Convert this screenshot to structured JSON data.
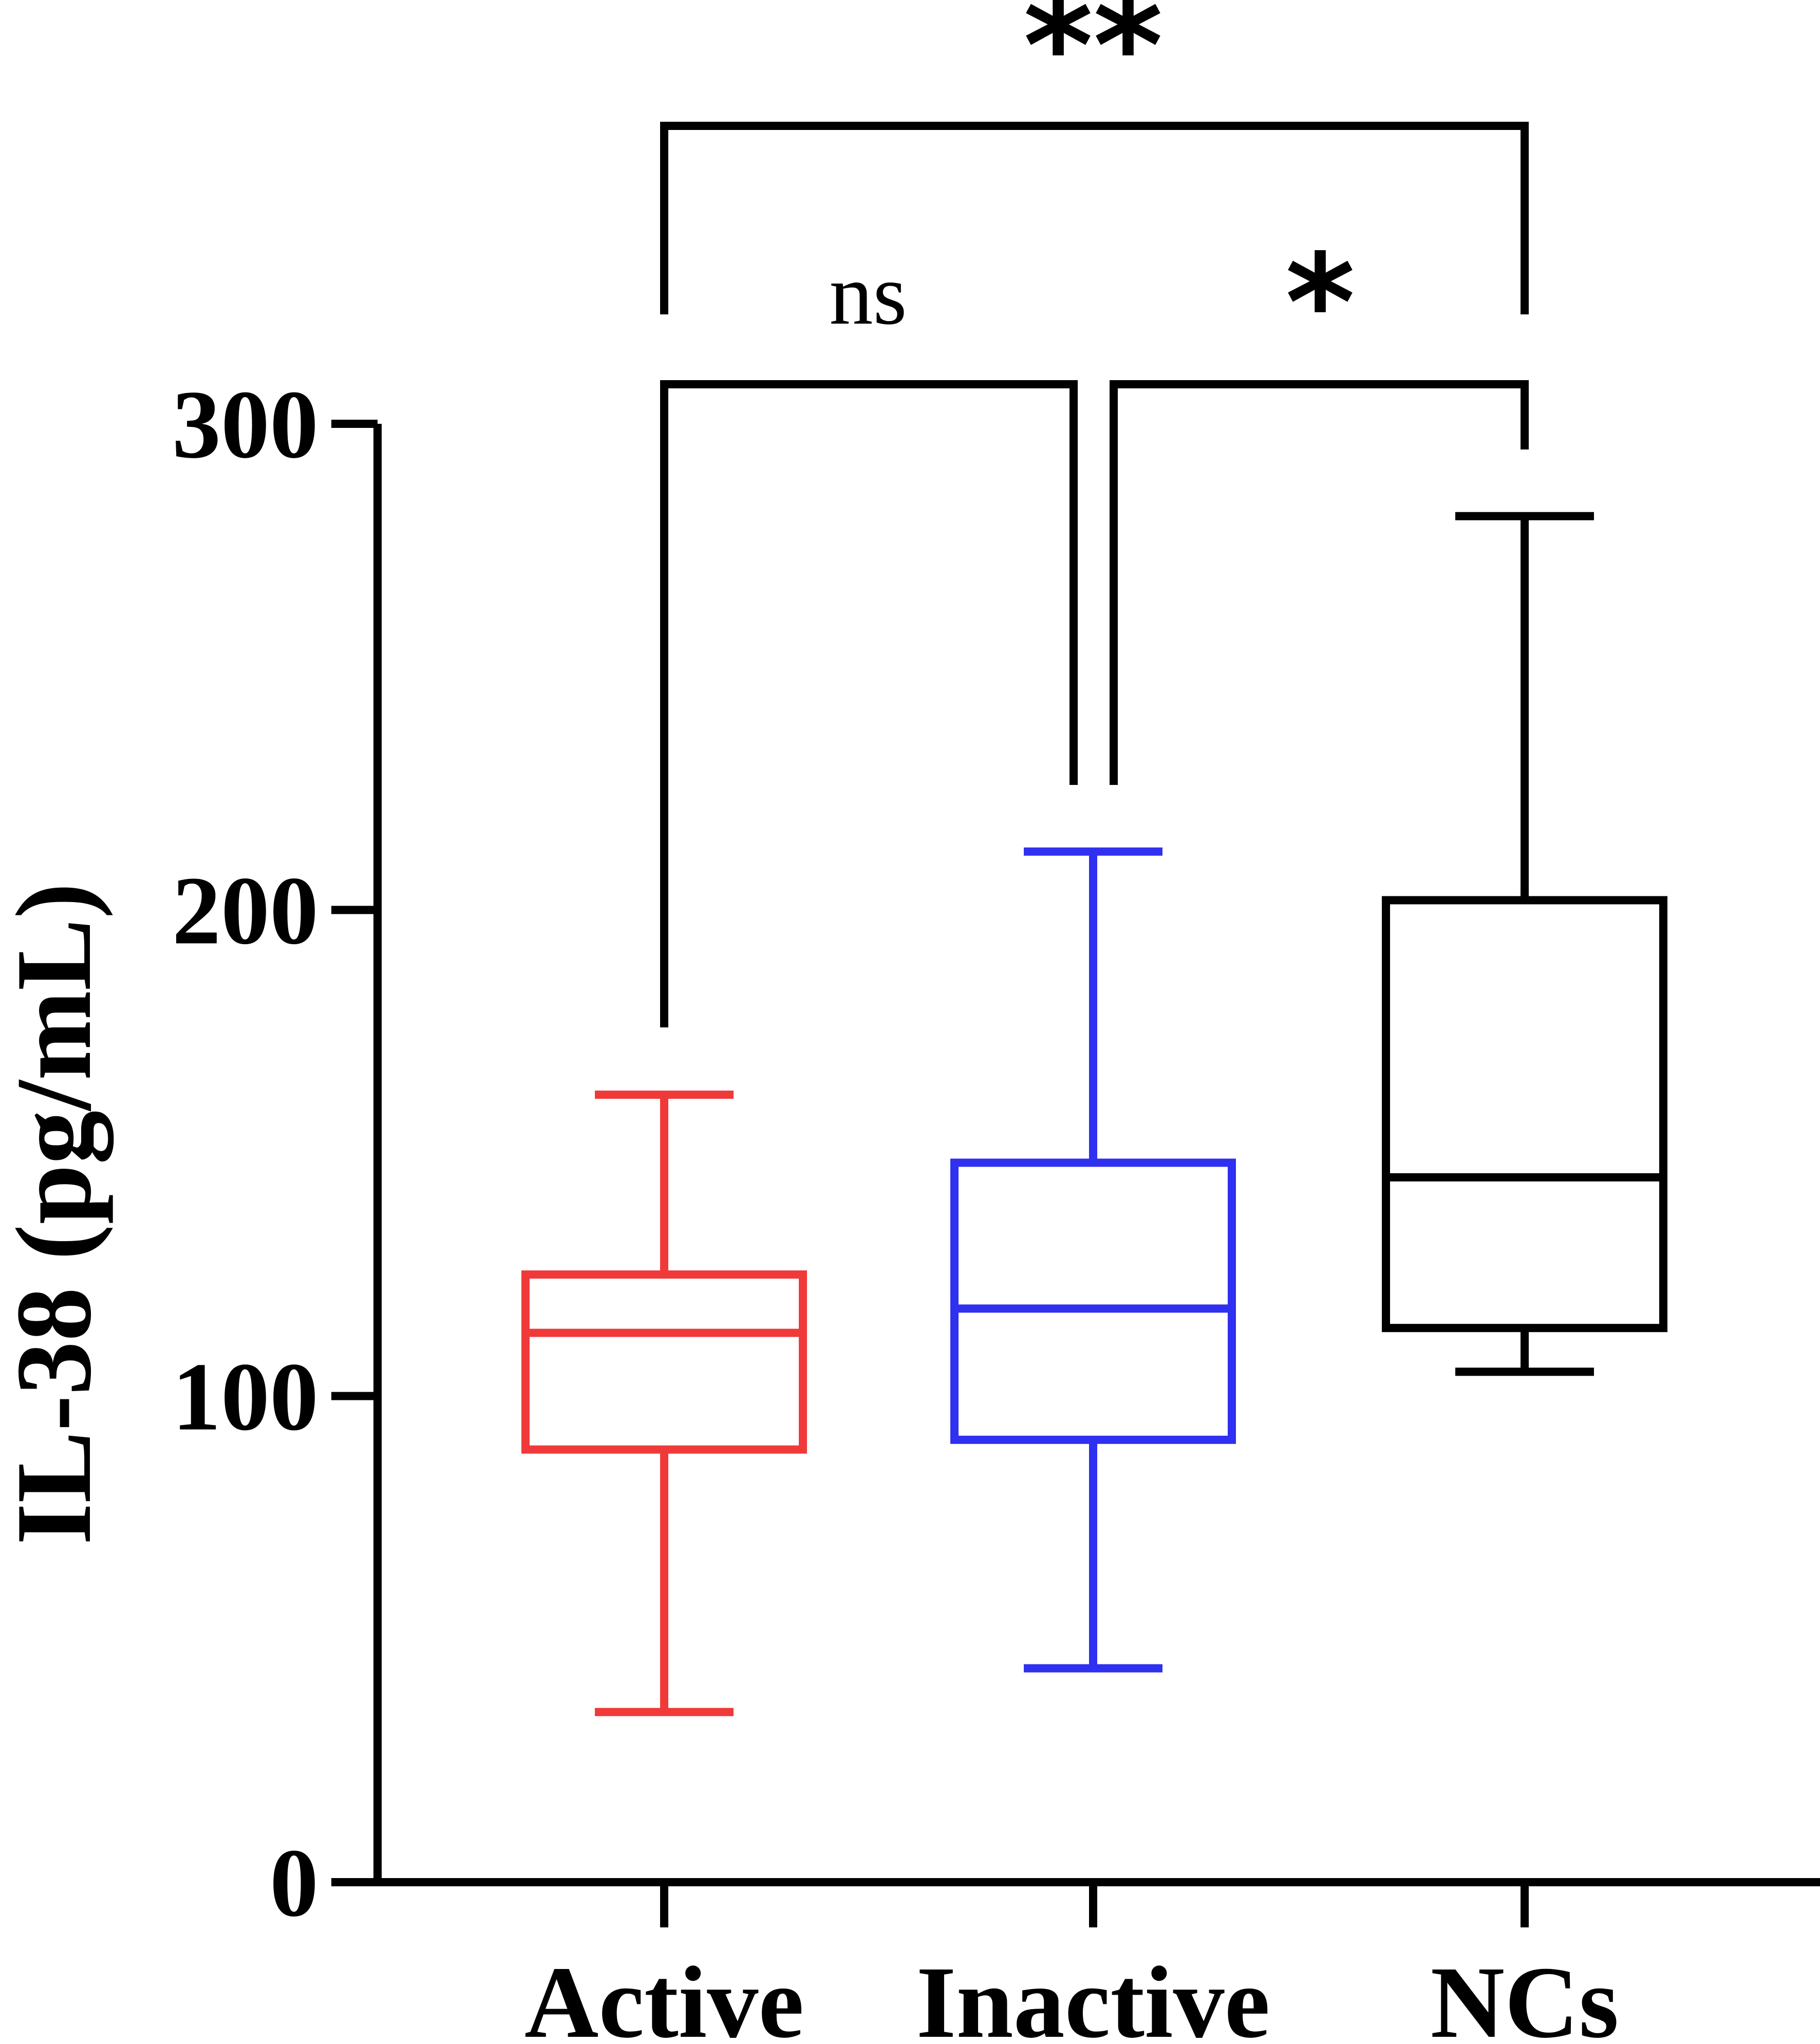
{
  "chart_data": {
    "type": "box",
    "title": "",
    "xlabel": "",
    "ylabel": "IL-38 (pg/mL)",
    "ylim": [
      0,
      300
    ],
    "yticks": [
      "0",
      "100",
      "200",
      "300"
    ],
    "categories": [
      "Active",
      "Inactive",
      "NCs"
    ],
    "series": [
      {
        "category": "Active",
        "color": "#f03a3a",
        "min": 35,
        "q1": 89,
        "median": 113,
        "q3": 125,
        "max": 162
      },
      {
        "category": "Inactive",
        "color": "#3030f0",
        "min": 44,
        "q1": 91,
        "median": 118,
        "q3": 148,
        "max": 212
      },
      {
        "category": "NCs",
        "color": "#000000",
        "min": 105,
        "q1": 114,
        "median": 145,
        "q3": 202,
        "max": 281
      }
    ],
    "comparisons": [
      {
        "from": "Active",
        "to": "Inactive",
        "label": "ns"
      },
      {
        "from": "Inactive",
        "to": "NCs",
        "label": "*"
      },
      {
        "from": "Active",
        "to": "NCs",
        "label": "**"
      }
    ],
    "grid": false,
    "legend": "none"
  }
}
